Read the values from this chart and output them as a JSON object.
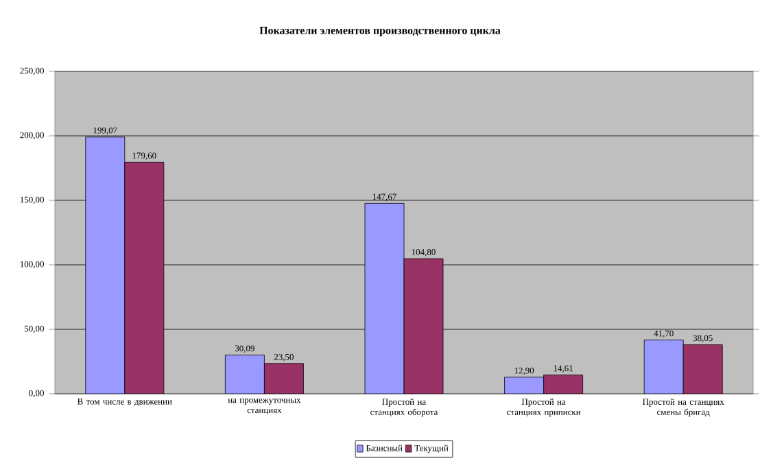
{
  "chart_data": {
    "type": "bar",
    "title": "Показатели элементов производственного цикла",
    "categories": [
      "В том числе в движении",
      "на промежуточных станциях",
      "Простой на станциях оборота",
      "Простой на станциях приписки",
      "Простой на станциях смены бригад"
    ],
    "series": [
      {
        "name": "Базисный",
        "color": "#9999ff",
        "values": [
          199.07,
          30.09,
          147.67,
          12.9,
          41.7
        ],
        "value_labels": [
          "199,07",
          "30,09",
          "147,67",
          "12,90",
          "41,70"
        ]
      },
      {
        "name": "Текущий",
        "color": "#993366",
        "values": [
          179.6,
          23.5,
          104.8,
          14.61,
          38.05
        ],
        "value_labels": [
          "179,60",
          "23,50",
          "104,80",
          "14,61",
          "38,05"
        ]
      }
    ],
    "ylim": [
      0,
      250
    ],
    "yticks": [
      {
        "value": 0,
        "label": "0,00"
      },
      {
        "value": 50,
        "label": "50,00"
      },
      {
        "value": 100,
        "label": "100,00"
      },
      {
        "value": 150,
        "label": "150,00"
      },
      {
        "value": 200,
        "label": "200,00"
      },
      {
        "value": 250,
        "label": "250,00"
      }
    ],
    "grid": "y",
    "legend": "bottom"
  }
}
